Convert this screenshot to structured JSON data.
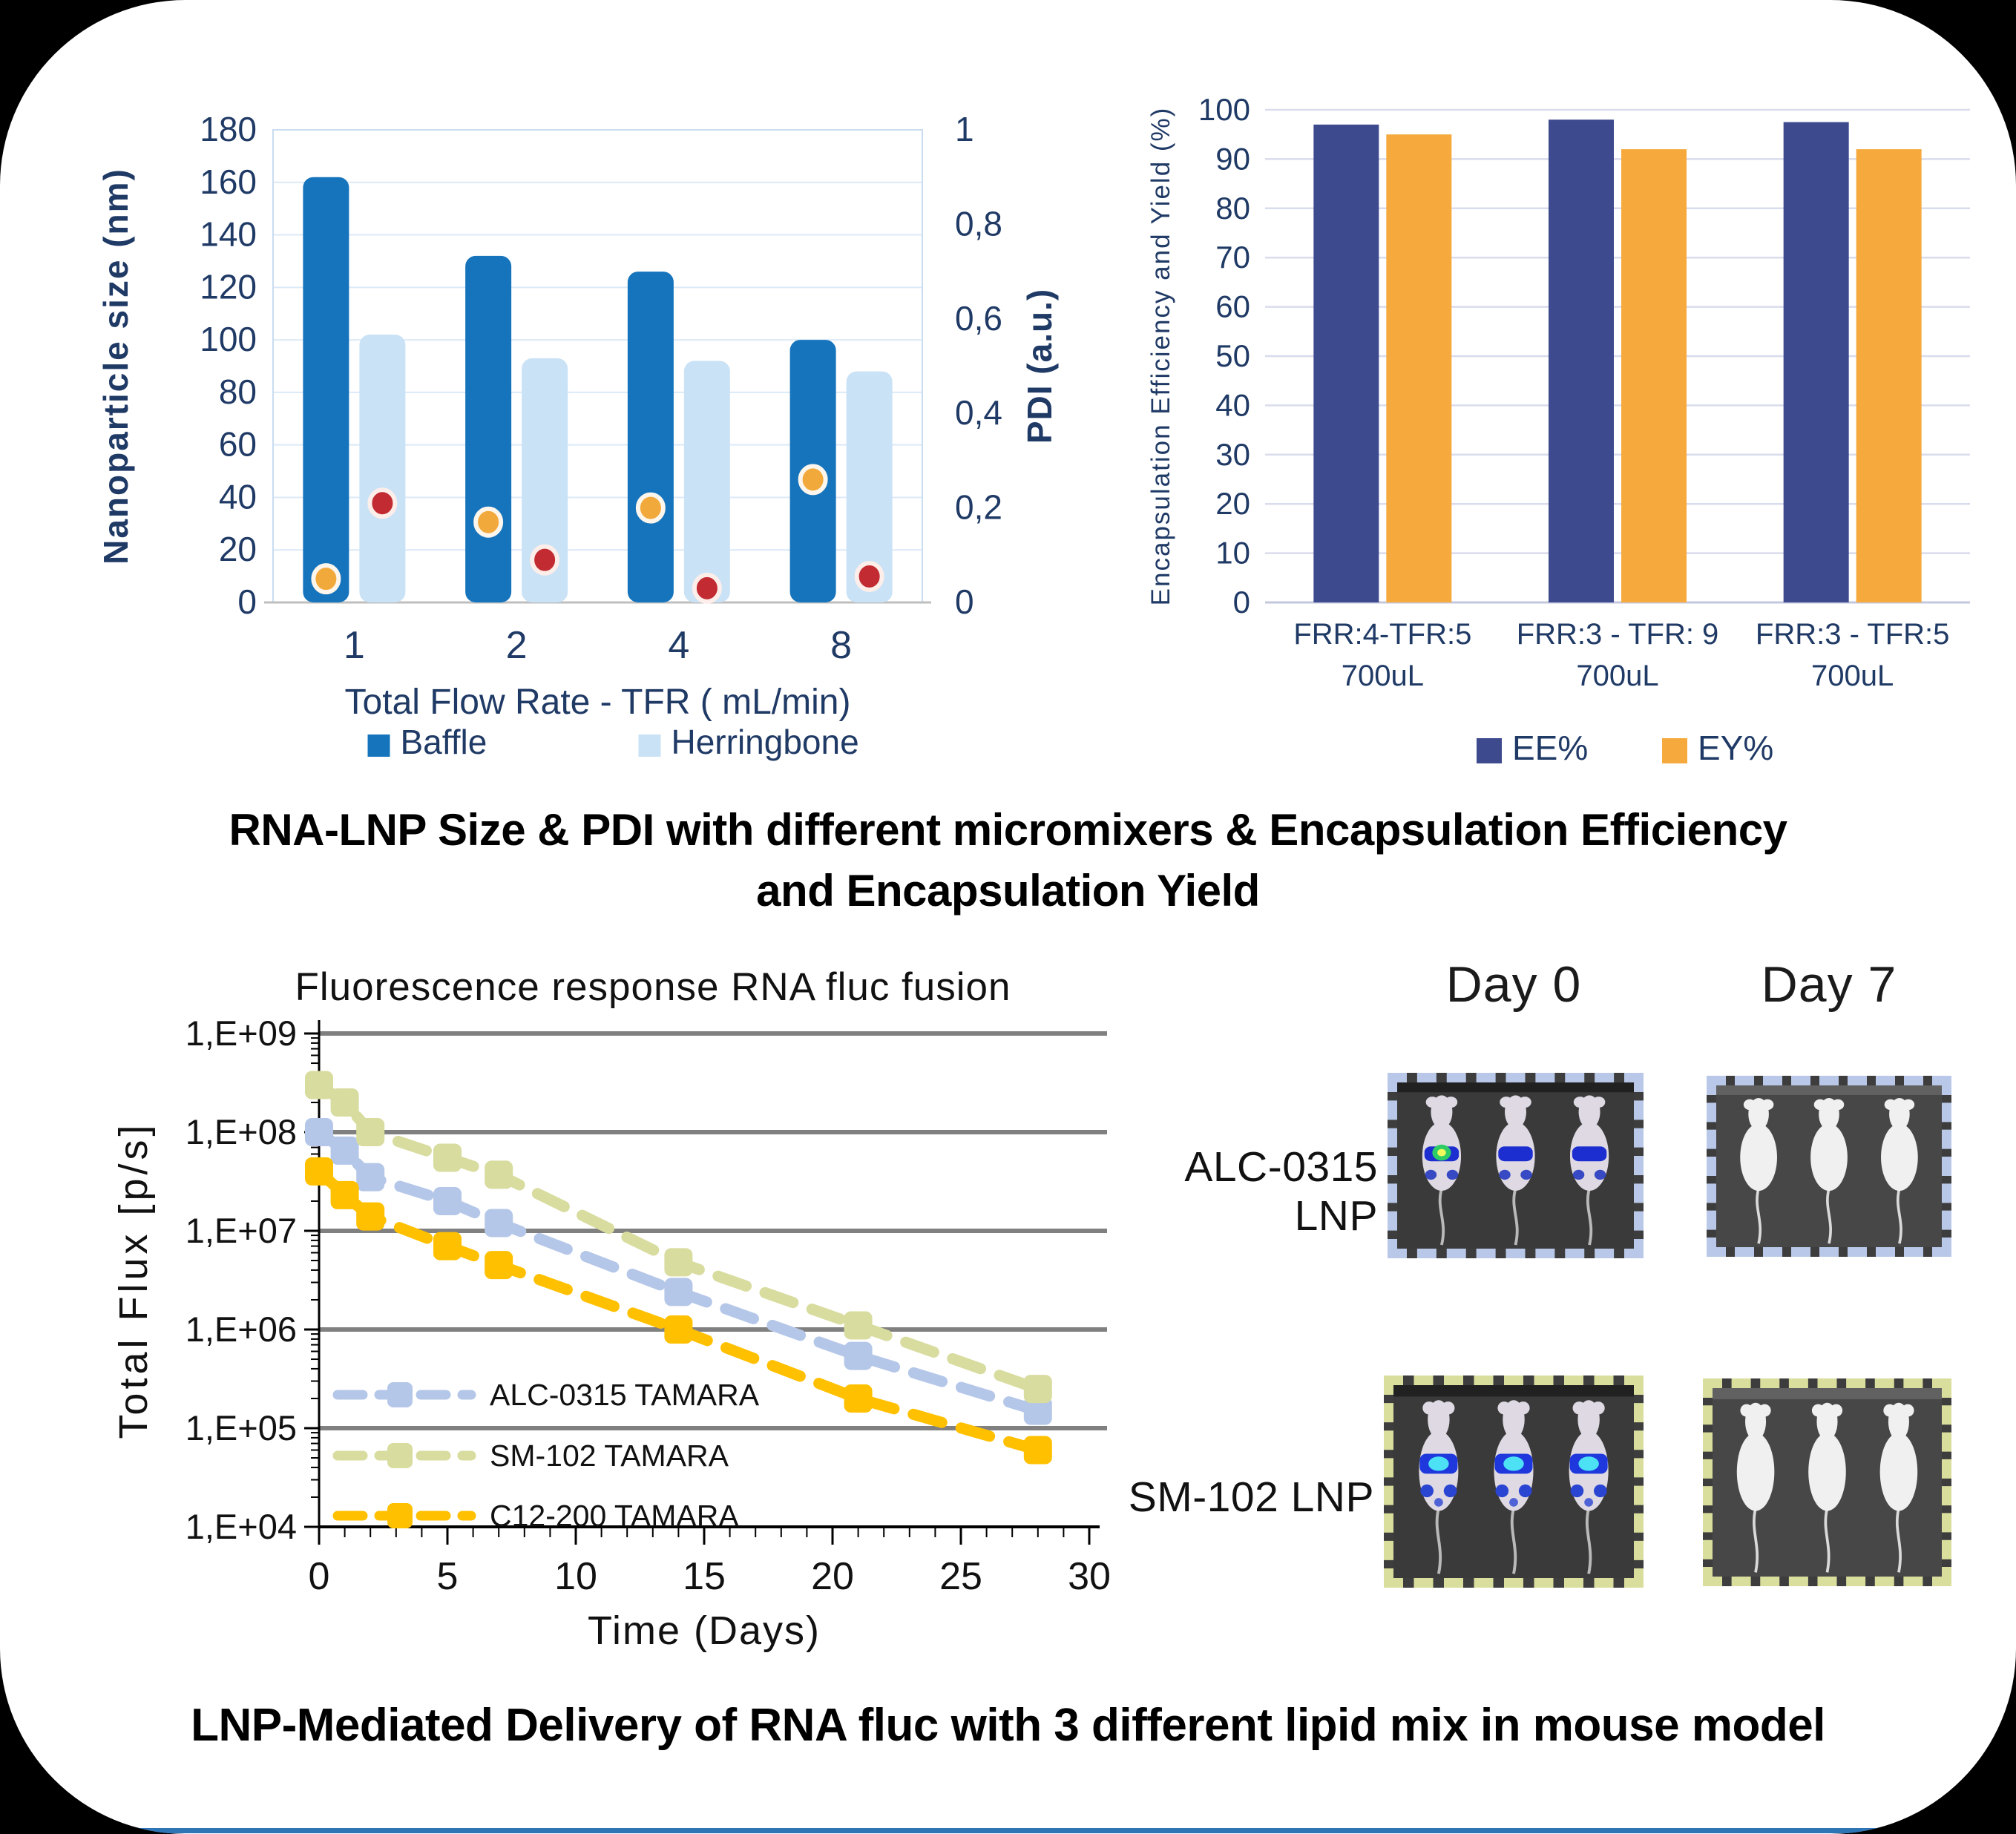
{
  "page": {
    "background": "#000000",
    "panel_background": "#ffffff",
    "bottom_line_color": "#2e75b6",
    "axis_text_color": "#203a66"
  },
  "titles": {
    "top_caption_line1": "RNA-LNP Size & PDI with different micromixers & Encapsulation Efficiency",
    "top_caption_line2": "and Encapsulation Yield",
    "bottom_caption": "LNP-Mediated Delivery of RNA fluc with 3 different lipid mix in mouse model"
  },
  "chart_data": [
    {
      "id": "size_pdi",
      "type": "bar",
      "title": "",
      "categories": [
        "1",
        "2",
        "4",
        "8"
      ],
      "xlabel": "Total Flow Rate - TFR ( mL/min)",
      "ylabel_left": "Nanoparticle size (nm)",
      "ylabel_right": "PDI (a.u.)",
      "ylim_left": [
        0,
        180
      ],
      "ylim_right": [
        0,
        1
      ],
      "y_ticks": [
        180,
        160,
        140,
        120,
        100,
        80,
        60,
        40,
        20,
        0
      ],
      "y_right_tick_labels": [
        "1",
        "0,8",
        "0,6",
        "0,4",
        "0,2",
        "0"
      ],
      "y_right_tick_values": [
        1,
        0.8,
        0.6,
        0.4,
        0.2,
        0
      ],
      "grid": true,
      "legend": [
        "Baffle",
        "Herringbone"
      ],
      "series": [
        {
          "name": "Baffle",
          "kind": "bar",
          "color": "#1674bc",
          "axis": "left",
          "values": [
            162,
            132,
            126,
            100
          ]
        },
        {
          "name": "Herringbone",
          "kind": "bar",
          "color": "#c9e2f6",
          "axis": "left",
          "values": [
            102,
            93,
            92,
            88
          ]
        },
        {
          "name": "pdi_on_baffle",
          "kind": "point",
          "color": "#f2a93b",
          "axis": "right",
          "values": [
            0.05,
            0.17,
            0.2,
            0.26
          ]
        },
        {
          "name": "pdi_on_herringbone",
          "kind": "point",
          "color": "#c12b31",
          "axis": "right",
          "values": [
            0.21,
            0.09,
            0.03,
            0.055
          ]
        }
      ]
    },
    {
      "id": "ee_ey",
      "type": "bar",
      "title": "",
      "categories_line1": [
        "FRR:4-TFR:5",
        "FRR:3 - TFR: 9",
        "FRR:3 - TFR:5"
      ],
      "categories_line2": [
        "700uL",
        "700uL",
        "700uL"
      ],
      "ylabel": "Encapsulation Efficiency and Yield (%)",
      "ylim": [
        0,
        100
      ],
      "y_ticks": [
        100,
        90,
        80,
        70,
        60,
        50,
        40,
        30,
        20,
        10,
        0
      ],
      "grid": true,
      "legend": [
        "EE%",
        "EY%"
      ],
      "series": [
        {
          "name": "EE%",
          "color": "#3e4a8e",
          "values": [
            97,
            98,
            97.5
          ]
        },
        {
          "name": "EY%",
          "color": "#f6aa3d",
          "values": [
            95,
            92,
            92
          ]
        }
      ]
    },
    {
      "id": "fluorescence",
      "type": "line",
      "title": "Fluorescence response RNA fluc fusion",
      "xlabel": "Time (Days)",
      "ylabel": "Total Flux [p/s]",
      "xlim": [
        0,
        30
      ],
      "x_major_ticks": [
        0,
        5,
        10,
        15,
        20,
        25,
        30
      ],
      "ylog_range": [
        10000.0,
        1000000000.0
      ],
      "y_tick_labels": [
        "1,E+09",
        "1,E+08",
        "1,E+07",
        "1,E+06",
        "1,E+05",
        "1,E+04"
      ],
      "x": [
        0,
        1,
        2,
        5,
        7,
        14,
        21,
        28
      ],
      "grid": true,
      "legend_position": "inside-left-bottom",
      "series": [
        {
          "name": "ALC-0315 TAMARA",
          "color": "#b5c7e8",
          "values": [
            100000000.0,
            65000000.0,
            35000000.0,
            20000000.0,
            12000000.0,
            2400000.0,
            540000.0,
            150000.0
          ]
        },
        {
          "name": "SM-102 TAMARA",
          "color": "#d8dc9e",
          "values": [
            300000000.0,
            200000000.0,
            100000000.0,
            55000000.0,
            37000000.0,
            4800000.0,
            1100000.0,
            250000.0
          ]
        },
        {
          "name": "C12-200 TAMARA",
          "color": "#ffc000",
          "values": [
            40000000.0,
            23000000.0,
            14000000.0,
            7000000.0,
            4500000.0,
            1000000.0,
            200000.0,
            60000.0
          ]
        }
      ]
    }
  ],
  "mouse_panel": {
    "col_headers": [
      "Day 0",
      "Day 7"
    ],
    "rows": [
      {
        "label": "ALC-0315 LNP",
        "border_color": "#b9c8e8"
      },
      {
        "label": "SM-102 LNP",
        "border_color": "#dade9d"
      }
    ]
  }
}
